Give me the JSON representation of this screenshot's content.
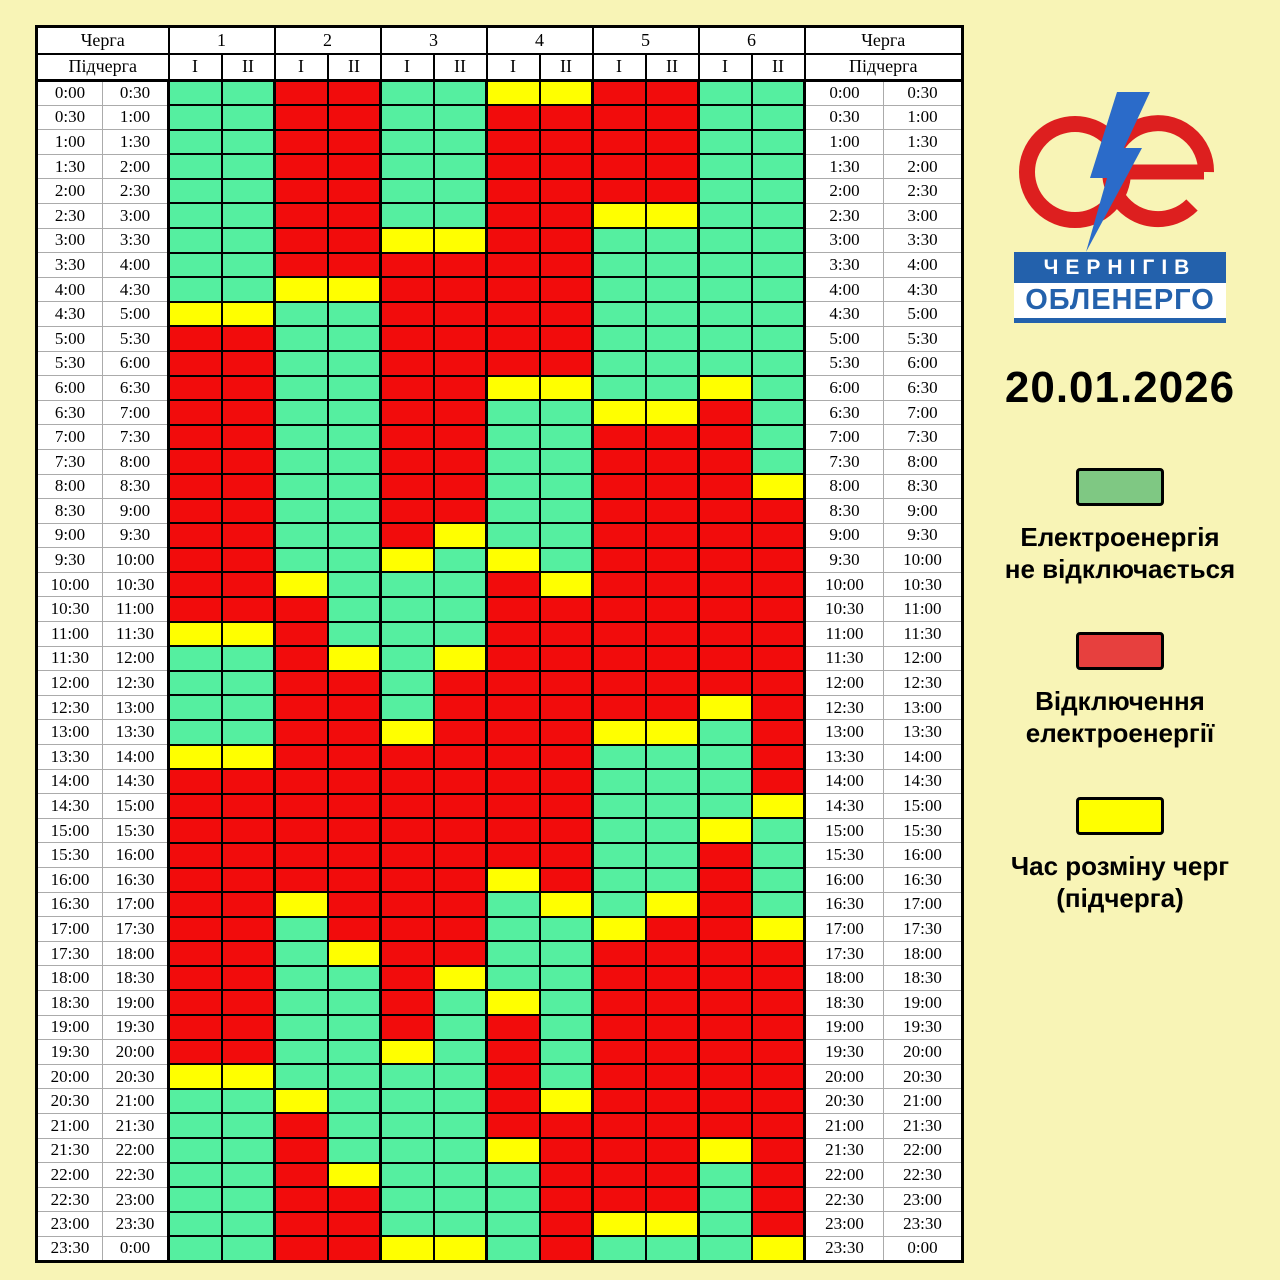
{
  "page": {
    "background": "#F8F4B6",
    "date": "20.01.2026"
  },
  "logo": {
    "line1": "ЧЕРНІГІВ",
    "line2": "ОБЛЕНЕРГО",
    "circle_color": "#DD1F1F",
    "bolt_color": "#2B6BC9",
    "banner_bg": "#2361AC",
    "banner_text_color": "#FFFFFF"
  },
  "table": {
    "header": {
      "queue_label": "Черга",
      "subqueue_label": "Підчерга",
      "queues": [
        "1",
        "2",
        "3",
        "4",
        "5",
        "6"
      ],
      "subqueues": [
        "I",
        "II"
      ]
    }
  },
  "legend": [
    {
      "id": "no-outage",
      "color": "#7FC883",
      "label_lines": [
        "Електроенергія",
        "не відключається"
      ]
    },
    {
      "id": "outage",
      "color": "#E7403E",
      "label_lines": [
        "Відключення",
        "електроенергії"
      ]
    },
    {
      "id": "queue-exchange",
      "color": "#FFFF00",
      "label_lines": [
        "Час розміну черг",
        "(підчерга)"
      ]
    }
  ],
  "chart_data": {
    "type": "heatmap",
    "title": "20.01.2026",
    "columns": [
      "1-I",
      "1-II",
      "2-I",
      "2-II",
      "3-I",
      "3-II",
      "4-I",
      "4-II",
      "5-I",
      "5-II",
      "6-I",
      "6-II"
    ],
    "cell_colors": {
      "G": "#55EFA0",
      "R": "#F20C0C",
      "Y": "#FFFF00"
    },
    "cell_meanings": {
      "G": "Електроенергія не відключається",
      "R": "Відключення електроенергії",
      "Y": "Час розміну черг (підчерга)"
    },
    "rows": [
      {
        "start": "0:00",
        "end": "0:30",
        "cells": "GGRRGGYYRRGG"
      },
      {
        "start": "0:30",
        "end": "1:00",
        "cells": "GGRRGGRRRRGG"
      },
      {
        "start": "1:00",
        "end": "1:30",
        "cells": "GGRRGGRRRRGG"
      },
      {
        "start": "1:30",
        "end": "2:00",
        "cells": "GGRRGGRRRRGG"
      },
      {
        "start": "2:00",
        "end": "2:30",
        "cells": "GGRRGGRRRRGG"
      },
      {
        "start": "2:30",
        "end": "3:00",
        "cells": "GGRRGGRRYYGG"
      },
      {
        "start": "3:00",
        "end": "3:30",
        "cells": "GGRRYYRRGGGG"
      },
      {
        "start": "3:30",
        "end": "4:00",
        "cells": "GGRRRRRRGGGG"
      },
      {
        "start": "4:00",
        "end": "4:30",
        "cells": "GGYYRRRRGGGG"
      },
      {
        "start": "4:30",
        "end": "5:00",
        "cells": "YYGGRRRRGGGG"
      },
      {
        "start": "5:00",
        "end": "5:30",
        "cells": "RRGGRRRRGGGG"
      },
      {
        "start": "5:30",
        "end": "6:00",
        "cells": "RRGGRRRRGGGG"
      },
      {
        "start": "6:00",
        "end": "6:30",
        "cells": "RRGGRRYYGGYG"
      },
      {
        "start": "6:30",
        "end": "7:00",
        "cells": "RRGGRRGGYYRG"
      },
      {
        "start": "7:00",
        "end": "7:30",
        "cells": "RRGGRRGGRRRG"
      },
      {
        "start": "7:30",
        "end": "8:00",
        "cells": "RRGGRRGGRRRG"
      },
      {
        "start": "8:00",
        "end": "8:30",
        "cells": "RRGGRRGGRRRY"
      },
      {
        "start": "8:30",
        "end": "9:00",
        "cells": "RRGGRRGGRRRR"
      },
      {
        "start": "9:00",
        "end": "9:30",
        "cells": "RRGGRYGGRRRR"
      },
      {
        "start": "9:30",
        "end": "10:00",
        "cells": "RRGGYGYGRRRR"
      },
      {
        "start": "10:00",
        "end": "10:30",
        "cells": "RRYGGGRYRRRR"
      },
      {
        "start": "10:30",
        "end": "11:00",
        "cells": "RRRGGGRRRRRR"
      },
      {
        "start": "11:00",
        "end": "11:30",
        "cells": "YYRGGGRRRRRR"
      },
      {
        "start": "11:30",
        "end": "12:00",
        "cells": "GGRYGYRRRRRR"
      },
      {
        "start": "12:00",
        "end": "12:30",
        "cells": "GGRRGRRRRRRR"
      },
      {
        "start": "12:30",
        "end": "13:00",
        "cells": "GGRRGRRRRRYR"
      },
      {
        "start": "13:00",
        "end": "13:30",
        "cells": "GGRRYRRRYYGR"
      },
      {
        "start": "13:30",
        "end": "14:00",
        "cells": "YYRRRRRRGGGR"
      },
      {
        "start": "14:00",
        "end": "14:30",
        "cells": "RRRRRRRRGGGR"
      },
      {
        "start": "14:30",
        "end": "15:00",
        "cells": "RRRRRRRRGGGY"
      },
      {
        "start": "15:00",
        "end": "15:30",
        "cells": "RRRRRRRRGGYG"
      },
      {
        "start": "15:30",
        "end": "16:00",
        "cells": "RRRRRRRRGGRG"
      },
      {
        "start": "16:00",
        "end": "16:30",
        "cells": "RRRRRRYRGGRG"
      },
      {
        "start": "16:30",
        "end": "17:00",
        "cells": "RRYRRRGYGYRG"
      },
      {
        "start": "17:00",
        "end": "17:30",
        "cells": "RRGRRRGGYRRY"
      },
      {
        "start": "17:30",
        "end": "18:00",
        "cells": "RRGYRRGGRRRR"
      },
      {
        "start": "18:00",
        "end": "18:30",
        "cells": "RRGGRYGGRRRR"
      },
      {
        "start": "18:30",
        "end": "19:00",
        "cells": "RRGGRGYGRRRR"
      },
      {
        "start": "19:00",
        "end": "19:30",
        "cells": "RRGGRGRGRRRR"
      },
      {
        "start": "19:30",
        "end": "20:00",
        "cells": "RRGGYGRGRRRR"
      },
      {
        "start": "20:00",
        "end": "20:30",
        "cells": "YYGGGGRGRRRR"
      },
      {
        "start": "20:30",
        "end": "21:00",
        "cells": "GGYGGGRYRRRR"
      },
      {
        "start": "21:00",
        "end": "21:30",
        "cells": "GGRGGGRRRRRR"
      },
      {
        "start": "21:30",
        "end": "22:00",
        "cells": "GGRGGGYRRRYR"
      },
      {
        "start": "22:00",
        "end": "22:30",
        "cells": "GGRYGGGRRRGR"
      },
      {
        "start": "22:30",
        "end": "23:00",
        "cells": "GGRRGGGRRRGR"
      },
      {
        "start": "23:00",
        "end": "23:30",
        "cells": "GGRRGGGRYYGR"
      },
      {
        "start": "23:30",
        "end": "0:00",
        "cells": "GGRRYYGRGGGY"
      }
    ]
  }
}
